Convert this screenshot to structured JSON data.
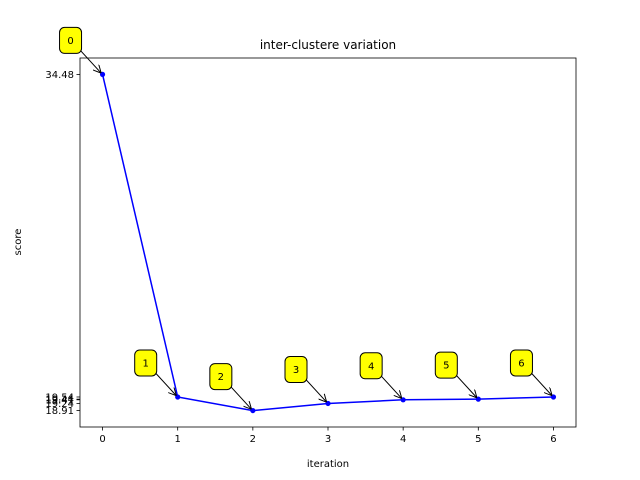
{
  "chart_data": {
    "type": "line",
    "title": "inter-clustere variation",
    "xlabel": "iteration",
    "ylabel": "score",
    "x": [
      0,
      1,
      2,
      3,
      4,
      5,
      6
    ],
    "y": [
      34.48,
      19.54,
      18.91,
      19.24,
      19.41,
      19.44,
      19.54
    ],
    "x_ticks": [
      0,
      1,
      2,
      3,
      4,
      5,
      6
    ],
    "y_tick_labels": [
      "34.48",
      "19.54",
      "19.44",
      "19.41",
      "19.24",
      "18.91"
    ],
    "annotations": [
      "0",
      "1",
      "2",
      "3",
      "4",
      "5",
      "6"
    ],
    "xlim": [
      -0.3,
      6.3
    ],
    "ylim": [
      18.15,
      35.24
    ],
    "line_color": "#0000ff",
    "annotation_box_color": "#ffff00",
    "grid": false,
    "legend": false
  }
}
